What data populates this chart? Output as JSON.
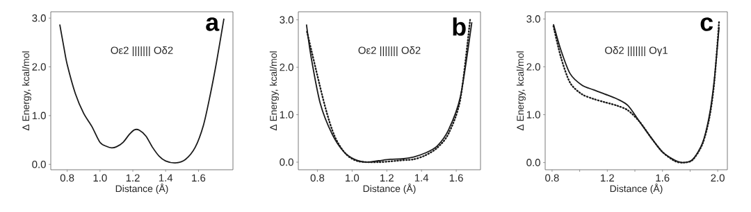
{
  "chart_data": [
    {
      "type": "line",
      "xlabel": "Distance (Å)",
      "ylabel": "Δ Energy, kcal/mol",
      "annotations": [
        "a",
        "Oε2 ||||||| Oδ2"
      ],
      "xlim": [
        0.7,
        1.81
      ],
      "ylim": [
        -0.11,
        3.13
      ],
      "xticks": [
        0.8,
        {
          "value": 1,
          "label": "1.0"
        },
        1.2,
        1.4,
        1.6
      ],
      "yticks": [
        {
          "value": 0,
          "label": "0.0"
        },
        {
          "value": 1,
          "label": "1.0"
        },
        {
          "value": 2,
          "label": "2.0"
        },
        {
          "value": 3,
          "label": "3.0"
        }
      ],
      "series": [
        {
          "color": "#1a1a1a",
          "line_style": "solid",
          "x": [
            0.755,
            0.78,
            0.8,
            0.85,
            0.9,
            0.95,
            1.0,
            1.04,
            1.07,
            1.1,
            1.14,
            1.18,
            1.21,
            1.24,
            1.28,
            1.32,
            1.36,
            1.4,
            1.46,
            1.52,
            1.58,
            1.63,
            1.67,
            1.71,
            1.755
          ],
          "values": [
            2.87,
            2.4,
            2.05,
            1.45,
            1.05,
            0.78,
            0.45,
            0.37,
            0.34,
            0.36,
            0.45,
            0.62,
            0.71,
            0.7,
            0.58,
            0.35,
            0.17,
            0.07,
            0.03,
            0.1,
            0.35,
            0.8,
            1.4,
            2.1,
            2.99
          ]
        }
      ]
    },
    {
      "type": "line",
      "xlabel": "Distance (Å)",
      "ylabel": "Δ Energy, kcal/mol",
      "annotations": [
        "b",
        "Oε2 ||||||| Oδ2"
      ],
      "xlim": [
        0.69,
        1.74
      ],
      "ylim": [
        -0.16,
        3.17
      ],
      "xticks": [
        0.8,
        {
          "value": 1,
          "label": "1.0"
        },
        1.2,
        1.4,
        1.6
      ],
      "yticks": [
        {
          "value": 0,
          "label": "0.0"
        },
        {
          "value": 1,
          "label": "1.0"
        },
        {
          "value": 2,
          "label": "2.0"
        },
        {
          "value": 3,
          "label": "3.0"
        }
      ],
      "series": [
        {
          "color": "#1a1a1a",
          "line_style": "solid",
          "x": [
            0.737,
            0.764,
            0.817,
            0.885,
            0.952,
            1.02,
            1.086,
            1.154,
            1.22,
            1.29,
            1.355,
            1.42,
            1.49,
            1.557,
            1.624,
            1.69
          ],
          "values": [
            2.9,
            2.21,
            1.23,
            0.59,
            0.22,
            0.05,
            0.0,
            0.03,
            0.06,
            0.07,
            0.11,
            0.19,
            0.34,
            0.69,
            1.38,
            2.95
          ]
        },
        {
          "color": "#1a1a1a",
          "line_style": "dotted",
          "x": [
            0.74,
            0.84,
            0.9,
            0.965,
            1.035,
            1.154,
            1.29,
            1.355,
            1.42,
            1.49,
            1.557,
            1.624,
            1.68
          ],
          "values": [
            2.75,
            1.23,
            0.54,
            0.17,
            0.02,
            0.0,
            0.04,
            0.06,
            0.14,
            0.3,
            0.61,
            1.33,
            3.0
          ]
        }
      ]
    },
    {
      "type": "line",
      "xlabel": "Distance (Å)",
      "ylabel": "Δ Energy, kcal/mol",
      "annotations": [
        "c",
        "Oδ2 ||||||| Oγ1"
      ],
      "xlim": [
        0.75,
        2.07
      ],
      "ylim": [
        -0.15,
        3.15
      ],
      "xticks": [
        0.8,
        {
          "value": 1.0,
          "label": null
        },
        1.2,
        {
          "value": 1.4,
          "label": null
        },
        1.6,
        {
          "value": 1.8,
          "label": null
        },
        {
          "value": 2,
          "label": "2.0"
        }
      ],
      "yticks": [
        {
          "value": 0,
          "label": "0.0"
        },
        {
          "value": 1,
          "label": "1.0"
        },
        {
          "value": 2,
          "label": "2.0"
        },
        {
          "value": 3,
          "label": "3.0"
        }
      ],
      "series": [
        {
          "color": "#1a1a1a",
          "line_style": "solid",
          "x": [
            0.81,
            0.864,
            0.93,
            1.015,
            1.1,
            1.183,
            1.27,
            1.35,
            1.435,
            1.52,
            1.6,
            1.69,
            1.755,
            1.82,
            1.89,
            1.94,
            1.975,
            2.01
          ],
          "values": [
            2.89,
            2.35,
            1.86,
            1.62,
            1.52,
            1.43,
            1.33,
            1.19,
            0.85,
            0.51,
            0.22,
            0.05,
            0.0,
            0.07,
            0.41,
            0.99,
            1.72,
            2.83
          ]
        },
        {
          "color": "#1a1a1a",
          "line_style": "dotted",
          "x": [
            0.81,
            0.864,
            0.93,
            1.015,
            1.1,
            1.183,
            1.27,
            1.35,
            1.435,
            1.52,
            1.6,
            1.69,
            1.755,
            1.82,
            1.89,
            1.94,
            1.975,
            2.01
          ],
          "values": [
            2.85,
            2.2,
            1.67,
            1.43,
            1.33,
            1.26,
            1.19,
            1.09,
            0.85,
            0.51,
            0.22,
            0.03,
            0.0,
            0.06,
            0.39,
            0.94,
            1.67,
            2.95
          ]
        }
      ]
    }
  ]
}
